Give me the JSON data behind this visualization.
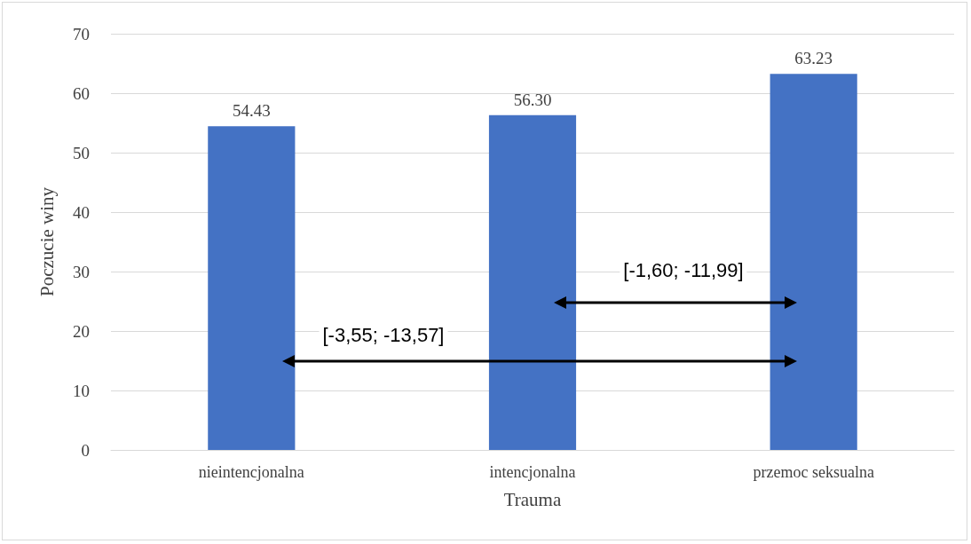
{
  "chart_data": {
    "type": "bar",
    "xlabel": "Trauma",
    "ylabel": "Poczucie winy",
    "categories": [
      "nieintencjonalna",
      "intencjonalna",
      "przemoc seksualna"
    ],
    "values": [
      54.43,
      56.3,
      63.23
    ],
    "value_labels": [
      "54.43",
      "56.30",
      "63.23"
    ],
    "color": "#4472c4",
    "ylim": [
      0,
      70
    ],
    "yticks": [
      0,
      10,
      20,
      30,
      40,
      50,
      60,
      70
    ],
    "grid": "y",
    "annotations": [
      "[-1,60; -11,99]",
      "[-3,55; -13,57]"
    ]
  }
}
